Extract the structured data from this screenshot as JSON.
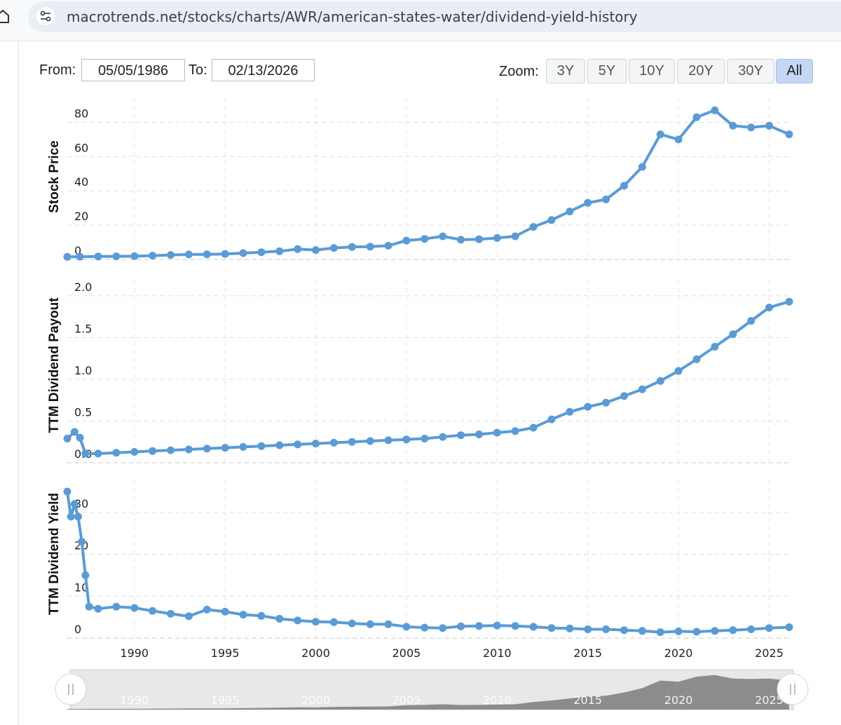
{
  "browser": {
    "url": "macrotrends.net/stocks/charts/AWR/american-states-water/dividend-yield-history"
  },
  "controls": {
    "from_label": "From:",
    "from_value": "05/05/1986",
    "to_label": "To:",
    "to_value": "02/13/2026",
    "zoom_label": "Zoom:",
    "zoom_options": [
      "3Y",
      "5Y",
      "10Y",
      "20Y",
      "30Y",
      "All"
    ],
    "zoom_selected": "All"
  },
  "colors": {
    "series": "#5b9bd5",
    "navigator_fill": "#8c8c8c",
    "selected_zoom": "#c5d7f6"
  },
  "icons": [
    "home-icon",
    "site-settings-icon",
    "navigator-left-handle-icon",
    "navigator-right-handle-icon"
  ],
  "chart_data": [
    {
      "type": "line",
      "ylabel": "Stock Price",
      "yticks": [
        "0",
        "20",
        "40",
        "60",
        "80"
      ],
      "ylim": [
        0,
        90
      ],
      "grid": true,
      "x": [
        1986.3,
        1987,
        1988,
        1989,
        1990,
        1991,
        1992,
        1993,
        1994,
        1995,
        1996,
        1997,
        1998,
        1999,
        2000,
        2001,
        2002,
        2003,
        2004,
        2005,
        2006,
        2007,
        2008,
        2009,
        2010,
        2011,
        2012,
        2013,
        2014,
        2015,
        2016,
        2017,
        2018,
        2019,
        2020,
        2021,
        2022,
        2023,
        2024,
        2025,
        2026.1
      ],
      "values": [
        1.5,
        1.6,
        1.7,
        1.8,
        1.9,
        2.2,
        2.6,
        2.9,
        3,
        3.2,
        3.7,
        4.2,
        4.8,
        6,
        5.5,
        6.7,
        7.3,
        7.5,
        8,
        11,
        12,
        13.5,
        11.5,
        11.8,
        12.5,
        13.5,
        19,
        23,
        28,
        33,
        35,
        43,
        54,
        73,
        70,
        83,
        87,
        78,
        77,
        78,
        73
      ],
      "xticks": [
        "1990",
        "1995",
        "2000",
        "2005",
        "2010",
        "2015",
        "2020",
        "2025"
      ]
    },
    {
      "type": "line",
      "ylabel": "TTM Dividend Payout",
      "yticks": [
        "0.0",
        "0.5",
        "1.0",
        "1.5",
        "2.0"
      ],
      "ylim": [
        0,
        2.1
      ],
      "grid": true,
      "x": [
        1986.3,
        1986.7,
        1987,
        1987.3,
        1988,
        1989,
        1990,
        1991,
        1992,
        1993,
        1994,
        1995,
        1996,
        1997,
        1998,
        1999,
        2000,
        2001,
        2002,
        2003,
        2004,
        2005,
        2006,
        2007,
        2008,
        2009,
        2010,
        2011,
        2012,
        2013,
        2014,
        2015,
        2016,
        2017,
        2018,
        2019,
        2020,
        2021,
        2022,
        2023,
        2024,
        2025,
        2026.1
      ],
      "values": [
        0.29,
        0.37,
        0.3,
        0.11,
        0.11,
        0.12,
        0.13,
        0.14,
        0.15,
        0.16,
        0.17,
        0.18,
        0.19,
        0.2,
        0.21,
        0.22,
        0.23,
        0.24,
        0.25,
        0.26,
        0.27,
        0.28,
        0.29,
        0.31,
        0.33,
        0.34,
        0.36,
        0.38,
        0.42,
        0.52,
        0.61,
        0.67,
        0.72,
        0.8,
        0.88,
        0.98,
        1.1,
        1.24,
        1.39,
        1.54,
        1.7,
        1.86,
        1.93
      ],
      "xticks": [
        "1990",
        "1995",
        "2000",
        "2005",
        "2010",
        "2015",
        "2020",
        "2025"
      ]
    },
    {
      "type": "line",
      "ylabel": "TTM Dividend Yield",
      "yticks": [
        "0",
        "10",
        "20",
        "30"
      ],
      "ylim": [
        0,
        36
      ],
      "grid": true,
      "x": [
        1986.3,
        1986.5,
        1986.7,
        1986.9,
        1987.1,
        1987.3,
        1987.5,
        1988,
        1989,
        1990,
        1991,
        1992,
        1993,
        1994,
        1995,
        1996,
        1997,
        1998,
        1999,
        2000,
        2001,
        2002,
        2003,
        2004,
        2005,
        2006,
        2007,
        2008,
        2009,
        2010,
        2011,
        2012,
        2013,
        2014,
        2015,
        2016,
        2017,
        2018,
        2019,
        2020,
        2021,
        2022,
        2023,
        2024,
        2025,
        2026.1
      ],
      "values": [
        35,
        29,
        32,
        29,
        23,
        15,
        7.5,
        7,
        7.5,
        7.2,
        6.5,
        5.8,
        5.2,
        6.8,
        6.3,
        5.6,
        5.3,
        4.6,
        4.2,
        3.9,
        3.8,
        3.5,
        3.3,
        3.3,
        2.7,
        2.5,
        2.4,
        2.8,
        2.9,
        3,
        2.9,
        2.7,
        2.4,
        2.3,
        2.1,
        2.1,
        1.9,
        1.7,
        1.4,
        1.6,
        1.5,
        1.7,
        1.9,
        2.1,
        2.4,
        2.6
      ],
      "xticks": [
        "1990",
        "1995",
        "2000",
        "2005",
        "2010",
        "2015",
        "2020",
        "2025"
      ]
    }
  ],
  "navigator": {
    "xticks": [
      "1990",
      "1995",
      "2000",
      "2005",
      "2010",
      "2015",
      "2020",
      "2025"
    ]
  }
}
